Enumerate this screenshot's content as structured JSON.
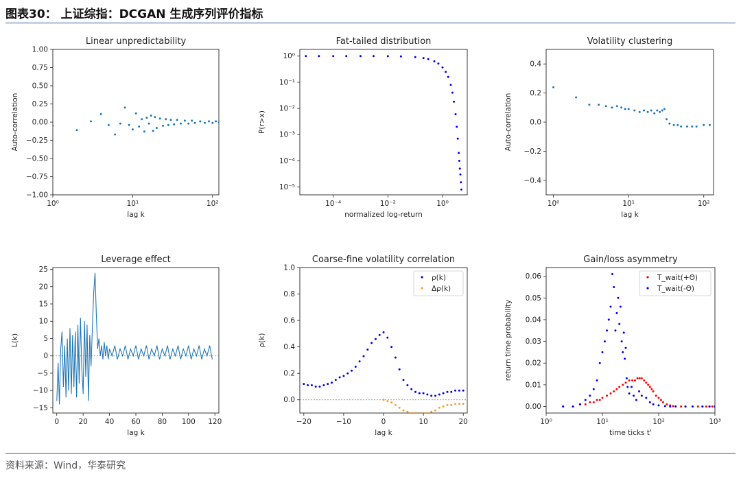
{
  "header": {
    "title": "图表30：  上证综指：DCGAN 生成序列评价指标"
  },
  "footer": {
    "source": "资料来源：Wind，华泰研究"
  },
  "colors": {
    "blue": "#1f77b4",
    "pure_blue": "#0000ff",
    "orange": "#ff9f1c",
    "red": "#ff0000",
    "grey": "#888888"
  },
  "chart_data": [
    {
      "id": "linear",
      "type": "scatter",
      "title": "Linear unpredictability",
      "xlabel": "lag k",
      "ylabel": "Auto-correlation",
      "xscale": "log",
      "xlim": [
        1,
        120
      ],
      "ylim": [
        -1.0,
        1.0
      ],
      "xticks": [
        {
          "v": 1,
          "l": "10⁰"
        },
        {
          "v": 10,
          "l": "10¹"
        },
        {
          "v": 100,
          "l": "10²"
        }
      ],
      "yticks": [
        {
          "v": 1.0,
          "l": "1.00"
        },
        {
          "v": 0.75,
          "l": "0.75"
        },
        {
          "v": 0.5,
          "l": "0.50"
        },
        {
          "v": 0.25,
          "l": "0.25"
        },
        {
          "v": 0.0,
          "l": "0.00"
        },
        {
          "v": -0.25,
          "l": "−0.25"
        },
        {
          "v": -0.5,
          "l": "−0.50"
        },
        {
          "v": -0.75,
          "l": "−0.75"
        },
        {
          "v": -1.0,
          "l": "−1.00"
        }
      ],
      "series": [
        {
          "name": "acf",
          "color": "#1f77b4",
          "x": [
            1,
            2,
            3,
            4,
            5,
            6,
            7,
            8,
            9,
            10,
            11,
            12,
            13,
            14,
            15,
            16,
            17,
            18,
            19,
            20,
            22,
            24,
            26,
            28,
            30,
            33,
            36,
            40,
            45,
            50,
            55,
            60,
            70,
            80,
            90,
            100,
            110,
            120
          ],
          "y": [
            -0.05,
            -0.11,
            0.01,
            0.11,
            -0.04,
            -0.17,
            -0.02,
            0.2,
            -0.04,
            -0.1,
            0.12,
            -0.06,
            0.04,
            -0.13,
            0.06,
            -0.02,
            0.09,
            -0.12,
            0.07,
            -0.08,
            0.05,
            -0.05,
            0.04,
            -0.04,
            0.03,
            -0.03,
            0.03,
            -0.02,
            0.02,
            -0.02,
            0.02,
            -0.01,
            0.01,
            -0.01,
            0.01,
            -0.01,
            0.01,
            0.0
          ]
        }
      ]
    },
    {
      "id": "fattail",
      "type": "scatter",
      "title": "Fat-tailed distribution",
      "xlabel": "normalized log-return",
      "ylabel": "P(r>x)",
      "xscale": "log",
      "yscale": "log",
      "xlim": [
        6e-06,
        8
      ],
      "ylim": [
        5e-06,
        1.8
      ],
      "xticks": [
        {
          "v": 0.0001,
          "l": "10⁻⁴"
        },
        {
          "v": 0.01,
          "l": "10⁻²"
        },
        {
          "v": 1,
          "l": "10⁰"
        }
      ],
      "yticks": [
        {
          "v": 1,
          "l": "10⁰"
        },
        {
          "v": 0.1,
          "l": "10⁻¹"
        },
        {
          "v": 0.01,
          "l": "10⁻²"
        },
        {
          "v": 0.001,
          "l": "10⁻³"
        },
        {
          "v": 0.0001,
          "l": "10⁻⁴"
        },
        {
          "v": 1e-05,
          "l": "10⁻⁵"
        }
      ],
      "series": [
        {
          "name": "ccdf",
          "color": "#0000ff",
          "x": [
            1e-05,
            3e-05,
            0.0001,
            0.0003,
            0.001,
            0.003,
            0.01,
            0.03,
            0.1,
            0.2,
            0.3,
            0.5,
            0.7,
            1.0,
            1.3,
            1.6,
            2.0,
            2.3,
            2.6,
            3.0,
            3.3,
            3.6,
            3.9,
            4.1,
            4.3,
            4.5,
            4.7,
            4.9
          ],
          "y": [
            1.0,
            1.0,
            1.0,
            1.0,
            0.999,
            0.997,
            0.99,
            0.97,
            0.91,
            0.84,
            0.77,
            0.63,
            0.52,
            0.37,
            0.25,
            0.16,
            0.08,
            0.04,
            0.018,
            0.006,
            0.002,
            0.0007,
            0.0002,
            0.0001,
            5e-05,
            3e-05,
            1.5e-05,
            8e-06
          ]
        }
      ]
    },
    {
      "id": "volclust",
      "type": "scatter",
      "title": "Volatility clustering",
      "xlabel": "lag k",
      "ylabel": "Auto-correlation",
      "xscale": "log",
      "xlim": [
        0.8,
        135
      ],
      "ylim": [
        -0.5,
        0.5
      ],
      "xticks": [
        {
          "v": 1,
          "l": "10⁰"
        },
        {
          "v": 10,
          "l": "10¹"
        },
        {
          "v": 100,
          "l": "10²"
        }
      ],
      "yticks": [
        {
          "v": 0.4,
          "l": "0.4"
        },
        {
          "v": 0.2,
          "l": "0.2"
        },
        {
          "v": 0.0,
          "l": "0.0"
        },
        {
          "v": -0.2,
          "l": "−0.2"
        },
        {
          "v": -0.4,
          "l": "−0.4"
        }
      ],
      "series": [
        {
          "name": "acf_abs",
          "color": "#1f77b4",
          "x": [
            1,
            2,
            3,
            4,
            5,
            6,
            7,
            8,
            9,
            10,
            12,
            14,
            16,
            18,
            20,
            22,
            24,
            26,
            28,
            30,
            32,
            35,
            40,
            45,
            50,
            60,
            70,
            80,
            100,
            120
          ],
          "y": [
            0.24,
            0.17,
            0.12,
            0.12,
            0.11,
            0.1,
            0.11,
            0.1,
            0.09,
            0.09,
            0.08,
            0.07,
            0.08,
            0.07,
            0.08,
            0.06,
            0.08,
            0.07,
            0.08,
            0.09,
            0.02,
            -0.01,
            -0.02,
            -0.02,
            -0.03,
            -0.03,
            -0.03,
            -0.03,
            -0.02,
            -0.02
          ]
        }
      ]
    },
    {
      "id": "leverage",
      "type": "line",
      "title": "Leverage effect",
      "xlabel": "lag k",
      "ylabel": "L(k)",
      "xlim": [
        -3,
        123
      ],
      "ylim": [
        -16.5,
        25.5
      ],
      "xticks": [
        {
          "v": 0,
          "l": "0"
        },
        {
          "v": 20,
          "l": "20"
        },
        {
          "v": 40,
          "l": "40"
        },
        {
          "v": 60,
          "l": "60"
        },
        {
          "v": 80,
          "l": "80"
        },
        {
          "v": 100,
          "l": "100"
        },
        {
          "v": 120,
          "l": "120"
        }
      ],
      "yticks": [
        {
          "v": 25,
          "l": "25"
        },
        {
          "v": 20,
          "l": "20"
        },
        {
          "v": 15,
          "l": "15"
        },
        {
          "v": 10,
          "l": "10"
        },
        {
          "v": 5,
          "l": "5"
        },
        {
          "v": 0,
          "l": "0"
        },
        {
          "v": -5,
          "l": "−5"
        },
        {
          "v": -10,
          "l": "−10"
        },
        {
          "v": -15,
          "l": "−15"
        }
      ],
      "hline": 0,
      "series": [
        {
          "name": "L",
          "color": "#1f77b4",
          "x": [
            0,
            1,
            2,
            3,
            4,
            5,
            6,
            7,
            8,
            9,
            10,
            11,
            12,
            13,
            14,
            15,
            16,
            17,
            18,
            19,
            20,
            21,
            22,
            23,
            24,
            25,
            26,
            27,
            28,
            29,
            30,
            31,
            32,
            33,
            34,
            35,
            36,
            37,
            38,
            39,
            40,
            42,
            44,
            46,
            48,
            50,
            52,
            54,
            56,
            58,
            60,
            62,
            64,
            66,
            68,
            70,
            72,
            74,
            76,
            78,
            80,
            82,
            84,
            86,
            88,
            90,
            92,
            94,
            96,
            98,
            100,
            102,
            104,
            106,
            108,
            110,
            112,
            114,
            116,
            118
          ],
          "y": [
            -13,
            -2,
            -14,
            2,
            7,
            -9,
            3,
            -12,
            5,
            -10,
            8,
            -11,
            6,
            -9,
            7,
            -12,
            9,
            -8,
            11,
            -4,
            -11,
            10,
            -6,
            9,
            -13,
            6,
            -3,
            8,
            18,
            24,
            12,
            2,
            5,
            0,
            3,
            -1,
            4,
            0,
            3,
            -1,
            2,
            0,
            3,
            -1,
            2,
            0,
            3,
            -1,
            2,
            0,
            3,
            -1,
            2,
            0,
            3,
            -1,
            2,
            0,
            3,
            -1,
            2,
            0,
            3,
            -1,
            2,
            0,
            3,
            -1,
            2,
            0,
            3,
            -1,
            2,
            0,
            3,
            -1,
            2,
            0,
            3,
            -1
          ]
        }
      ]
    },
    {
      "id": "coarse",
      "type": "scatter",
      "title": "Coarse-fine volatility correlation",
      "xlabel": "lag k",
      "ylabel": "ρ(k)",
      "xlim": [
        -21,
        21
      ],
      "ylim": [
        -0.1,
        1.0
      ],
      "xticks": [
        {
          "v": -20,
          "l": "−20"
        },
        {
          "v": -10,
          "l": "−10"
        },
        {
          "v": 0,
          "l": "0"
        },
        {
          "v": 10,
          "l": "10"
        },
        {
          "v": 20,
          "l": "20"
        }
      ],
      "yticks": [
        {
          "v": 1.0,
          "l": "1.0"
        },
        {
          "v": 0.8,
          "l": "0.8"
        },
        {
          "v": 0.6,
          "l": "0.6"
        },
        {
          "v": 0.4,
          "l": "0.4"
        },
        {
          "v": 0.2,
          "l": "0.2"
        },
        {
          "v": 0.0,
          "l": "0.0"
        }
      ],
      "hline": 0,
      "legend": [
        "ρ(k)",
        "Δρ(k)"
      ],
      "series": [
        {
          "name": "ρ(k)",
          "color": "#0000ff",
          "x": [
            -20,
            -19,
            -18,
            -17,
            -16,
            -15,
            -14,
            -13,
            -12,
            -11,
            -10,
            -9,
            -8,
            -7,
            -6,
            -5,
            -4,
            -3,
            -2,
            -1,
            0,
            1,
            2,
            3,
            4,
            5,
            6,
            7,
            8,
            9,
            10,
            11,
            12,
            13,
            14,
            15,
            16,
            17,
            18,
            19,
            20
          ],
          "y": [
            0.12,
            0.11,
            0.11,
            0.1,
            0.1,
            0.11,
            0.12,
            0.13,
            0.15,
            0.17,
            0.18,
            0.2,
            0.22,
            0.25,
            0.29,
            0.33,
            0.38,
            0.43,
            0.46,
            0.49,
            0.51,
            0.47,
            0.4,
            0.32,
            0.23,
            0.15,
            0.11,
            0.08,
            0.06,
            0.05,
            0.05,
            0.04,
            0.03,
            0.03,
            0.04,
            0.05,
            0.06,
            0.06,
            0.07,
            0.07,
            0.07
          ]
        },
        {
          "name": "Δρ(k)",
          "color": "#ff9f1c",
          "x": [
            0,
            1,
            2,
            3,
            4,
            5,
            6,
            7,
            8,
            9,
            10,
            11,
            12,
            13,
            14,
            15,
            16,
            17,
            18,
            19,
            20
          ],
          "y": [
            0.0,
            -0.01,
            -0.02,
            -0.04,
            -0.06,
            -0.08,
            -0.09,
            -0.1,
            -0.1,
            -0.11,
            -0.1,
            -0.1,
            -0.09,
            -0.08,
            -0.06,
            -0.05,
            -0.04,
            -0.04,
            -0.03,
            -0.03,
            -0.03
          ]
        }
      ]
    },
    {
      "id": "gainloss",
      "type": "scatter",
      "title": "Gain/loss asymmetry",
      "xlabel": "time ticks t'",
      "ylabel": "return time probability",
      "xscale": "log",
      "xlim": [
        1,
        1000
      ],
      "ylim": [
        -0.003,
        0.064
      ],
      "xticks": [
        {
          "v": 1,
          "l": "10⁰"
        },
        {
          "v": 10,
          "l": "10¹"
        },
        {
          "v": 100,
          "l": "10²"
        },
        {
          "v": 1000,
          "l": "10³"
        }
      ],
      "yticks": [
        {
          "v": 0.06,
          "l": "0.06"
        },
        {
          "v": 0.05,
          "l": "0.05"
        },
        {
          "v": 0.04,
          "l": "0.04"
        },
        {
          "v": 0.03,
          "l": "0.03"
        },
        {
          "v": 0.02,
          "l": "0.02"
        },
        {
          "v": 0.01,
          "l": "0.01"
        },
        {
          "v": 0.0,
          "l": "0.00"
        }
      ],
      "legend": [
        "T_wait(+Θ)",
        "T_wait(-Θ)"
      ],
      "series": [
        {
          "name": "T_wait(+Θ)",
          "color": "#ff0000",
          "x": [
            2,
            3,
            4,
            5,
            6,
            7,
            8,
            9,
            10,
            12,
            14,
            16,
            18,
            20,
            23,
            26,
            30,
            34,
            38,
            42,
            46,
            50,
            55,
            60,
            65,
            70,
            75,
            80,
            90,
            100,
            110,
            120,
            140,
            160,
            180,
            200,
            250,
            300,
            400,
            500,
            600,
            700,
            800,
            900,
            1000
          ],
          "y": [
            0.0,
            0.0,
            0.001,
            0.001,
            0.002,
            0.002,
            0.003,
            0.003,
            0.004,
            0.005,
            0.006,
            0.007,
            0.008,
            0.009,
            0.01,
            0.011,
            0.012,
            0.012,
            0.012,
            0.013,
            0.013,
            0.013,
            0.012,
            0.011,
            0.01,
            0.009,
            0.008,
            0.007,
            0.005,
            0.004,
            0.003,
            0.002,
            0.001,
            0.0005,
            0.0002,
            0.0001,
            0.0,
            0.0,
            0.0,
            0.0,
            0.0,
            0.0,
            0.0,
            0.0,
            0.0
          ]
        },
        {
          "name": "T_wait(-Θ)",
          "color": "#0000ff",
          "x": [
            2,
            3,
            4,
            5,
            6,
            7,
            8,
            9,
            10,
            11,
            12,
            13,
            14,
            15,
            16,
            17,
            18,
            19,
            20,
            21,
            22,
            23,
            24,
            25,
            26,
            27,
            28,
            30,
            33,
            36,
            40,
            45,
            50,
            60,
            70,
            80,
            100,
            130,
            160,
            200,
            300,
            400,
            600,
            800,
            1000
          ],
          "y": [
            0.0,
            0.0,
            0.001,
            0.003,
            0.005,
            0.008,
            0.012,
            0.02,
            0.025,
            0.03,
            0.035,
            0.04,
            0.046,
            0.061,
            0.055,
            0.035,
            0.043,
            0.05,
            0.038,
            0.046,
            0.03,
            0.025,
            0.034,
            0.022,
            0.027,
            0.013,
            0.009,
            0.006,
            0.009,
            0.005,
            0.003,
            0.007,
            0.005,
            0.004,
            0.002,
            0.001,
            0.0005,
            0.0002,
            0.0,
            0.0,
            0.0,
            0.0,
            0.0,
            0.0,
            0.0
          ]
        }
      ]
    }
  ]
}
